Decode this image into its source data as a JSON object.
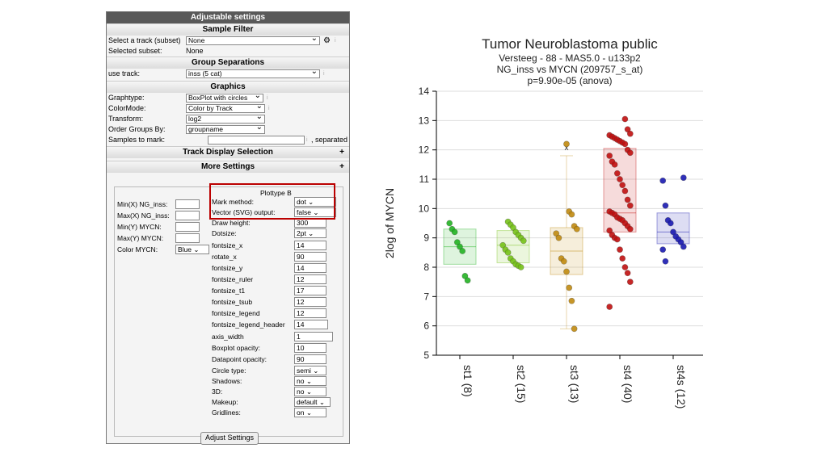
{
  "settings_panel": {
    "title": "Adjustable settings",
    "sample_filter": {
      "heading": "Sample Filter",
      "select_track_label": "Select a track (subset)",
      "select_track_value": "None",
      "selected_subset_label": "Selected subset:",
      "selected_subset_value": "None"
    },
    "group_separations": {
      "heading": "Group Separations",
      "use_track_label": "use track:",
      "use_track_value": "inss (5 cat)"
    },
    "graphics": {
      "heading": "Graphics",
      "graphtype_label": "Graphtype:",
      "graphtype_value": "BoxPlot with circles",
      "colormode_label": "ColorMode:",
      "colormode_value": "Color by Track",
      "transform_label": "Transform:",
      "transform_value": "log2",
      "order_label": "Order Groups By:",
      "order_value": "groupname",
      "samples_label": "Samples to mark:",
      "samples_value": "",
      "samples_suffix": ", separated"
    },
    "track_display_heading": "Track Display Selection",
    "more_settings_heading": "More Settings",
    "axis_fields": [
      {
        "label": "Min(X) NG_inss:",
        "value": ""
      },
      {
        "label": "Max(X) NG_inss:",
        "value": ""
      },
      {
        "label": "Min(Y) MYCN:",
        "value": ""
      },
      {
        "label": "Max(Y) MYCN:",
        "value": ""
      }
    ],
    "color_label": "Color MYCN:",
    "color_value": "Blue",
    "plottype_heading": "Plottype B",
    "plot_fields": [
      {
        "label": "Mark method:",
        "value": "dot",
        "type": "select"
      },
      {
        "label": "Vector (SVG) output:",
        "value": "false",
        "type": "select"
      },
      {
        "label": "Draw height:",
        "value": "300",
        "type": "input"
      },
      {
        "label": "Dotsize:",
        "value": "2pt",
        "type": "select"
      },
      {
        "label": "fontsize_x",
        "value": "14",
        "type": "input"
      },
      {
        "label": "rotate_x",
        "value": "90",
        "type": "input"
      },
      {
        "label": "fontsize_y",
        "value": "14",
        "type": "input"
      },
      {
        "label": "fontsize_ruler",
        "value": "12",
        "type": "input"
      },
      {
        "label": "fontsize_t1",
        "value": "17",
        "type": "input"
      },
      {
        "label": "fontsize_tsub",
        "value": "12",
        "type": "input"
      },
      {
        "label": "fontsize_legend",
        "value": "12",
        "type": "input"
      },
      {
        "label": "fontsize_legend_header",
        "value": "14",
        "type": "input"
      },
      {
        "label": "axis_width",
        "value": "1",
        "type": "input"
      },
      {
        "label": "Boxplot opacity:",
        "value": "10",
        "type": "input"
      },
      {
        "label": "Datapoint opacity:",
        "value": "90",
        "type": "input"
      },
      {
        "label": "Circle type:",
        "value": "semi",
        "type": "select"
      },
      {
        "label": "Shadows:",
        "value": "no",
        "type": "select"
      },
      {
        "label": "3D:",
        "value": "no",
        "type": "select"
      },
      {
        "label": "Makeup:",
        "value": "default",
        "type": "select"
      },
      {
        "label": "Gridlines:",
        "value": "on",
        "type": "select"
      }
    ],
    "adjust_button": "Adjust Settings"
  },
  "chart_data": {
    "type": "scatter",
    "title": "Tumor Neuroblastoma public",
    "subtitle_lines": [
      "Versteeg - 88 - MAS5.0 - u133p2",
      "NG_inss vs MYCN (209757_s_at)",
      "p=9.90e-05  (anova)"
    ],
    "ylabel": "2log of MYCN",
    "ylim": [
      5,
      14
    ],
    "yticks": [
      5,
      6,
      7,
      8,
      9,
      10,
      11,
      12,
      13,
      14
    ],
    "grid": true,
    "groups": [
      {
        "name": "st1",
        "label": "st1 (8)",
        "color": "#22b322",
        "box": {
          "q1": 8.1,
          "median": 8.7,
          "q3": 9.3
        },
        "points": [
          9.5,
          9.3,
          9.2,
          8.85,
          8.7,
          8.55,
          7.7,
          7.55
        ]
      },
      {
        "name": "st2",
        "label": "st2 (15)",
        "color": "#77c219",
        "box": {
          "q1": 8.15,
          "median": 8.75,
          "q3": 9.25
        },
        "points": [
          9.55,
          9.45,
          9.35,
          9.2,
          9.1,
          9.0,
          8.9,
          8.75,
          8.6,
          8.5,
          8.3,
          8.2,
          8.1,
          8.05,
          8.0
        ]
      },
      {
        "name": "st3",
        "label": "st3 (13)",
        "color": "#c08a10",
        "box": {
          "q1": 7.75,
          "median": 8.55,
          "q3": 9.35,
          "whisker_low": 5.9,
          "whisker_high": 11.8,
          "outlier_x": 12.1
        },
        "points": [
          12.2,
          9.9,
          9.8,
          9.4,
          9.3,
          9.15,
          9.0,
          8.3,
          8.2,
          7.85,
          7.3,
          6.85,
          5.9
        ]
      },
      {
        "name": "st4",
        "label": "st4 (40)",
        "color": "#c01010",
        "box": {
          "q1": 9.2,
          "median": 9.85,
          "q3": 12.05
        },
        "points": [
          13.05,
          12.7,
          12.55,
          12.5,
          12.45,
          12.4,
          12.35,
          12.3,
          12.25,
          12.2,
          12.0,
          11.9,
          11.8,
          11.6,
          11.5,
          11.2,
          11.0,
          10.8,
          10.6,
          10.3,
          10.1,
          9.9,
          9.85,
          9.8,
          9.7,
          9.65,
          9.6,
          9.5,
          9.4,
          9.3,
          9.25,
          9.1,
          9.0,
          8.95,
          8.6,
          8.3,
          8.0,
          7.8,
          7.5,
          6.65
        ]
      },
      {
        "name": "st4s",
        "label": "st4s (12)",
        "color": "#1a1ab0",
        "box": {
          "q1": 8.8,
          "median": 9.2,
          "q3": 9.85
        },
        "points": [
          11.05,
          10.95,
          10.1,
          9.6,
          9.5,
          9.2,
          9.05,
          8.95,
          8.85,
          8.7,
          8.6,
          8.2
        ]
      }
    ]
  }
}
